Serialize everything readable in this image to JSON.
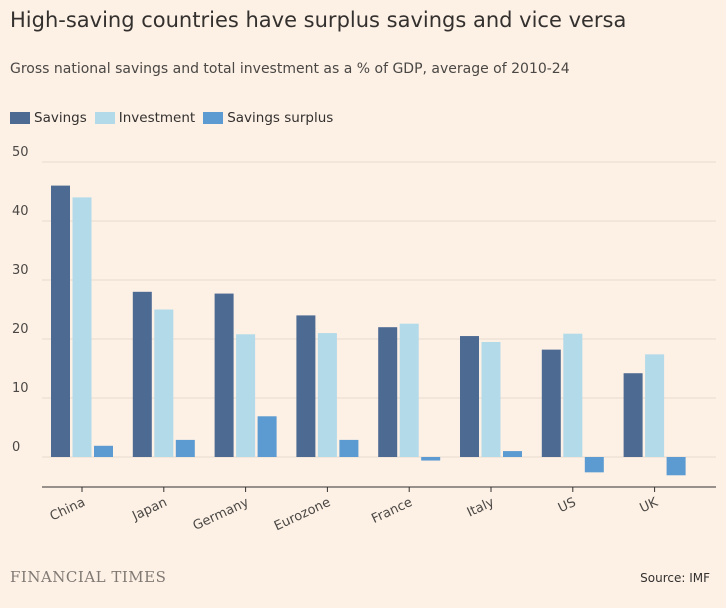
{
  "header": {
    "title": "High-saving countries have surplus savings and vice versa",
    "subtitle": "Gross national savings and total investment as a % of GDP, average of 2010-24"
  },
  "footer": {
    "logo": "FINANCIAL TIMES",
    "source": "Source: IMF"
  },
  "colors": {
    "background": "#fdf1e6",
    "gridline": "#e6d9ce",
    "axis": "#33302e"
  },
  "chart_data": {
    "type": "bar",
    "categories": [
      "China",
      "Japan",
      "Germany",
      "Eurozone",
      "France",
      "Italy",
      "US",
      "UK"
    ],
    "series": [
      {
        "name": "Savings",
        "color": "#4d6a93",
        "values": [
          46,
          28,
          27.7,
          24,
          22,
          20.5,
          18.2,
          14.2
        ]
      },
      {
        "name": "Investment",
        "color": "#b3dae8",
        "values": [
          44,
          25,
          20.8,
          21,
          22.6,
          19.5,
          20.9,
          17.4
        ]
      },
      {
        "name": "Savings surplus",
        "color": "#5b9bd1",
        "values": [
          1.9,
          2.9,
          6.9,
          2.9,
          -0.6,
          1,
          -2.6,
          -3.1
        ]
      }
    ],
    "yticks": [
      0,
      10,
      20,
      30,
      40,
      50
    ],
    "ylim": [
      -5,
      50
    ],
    "grid": true,
    "legend_position": "top-left"
  }
}
